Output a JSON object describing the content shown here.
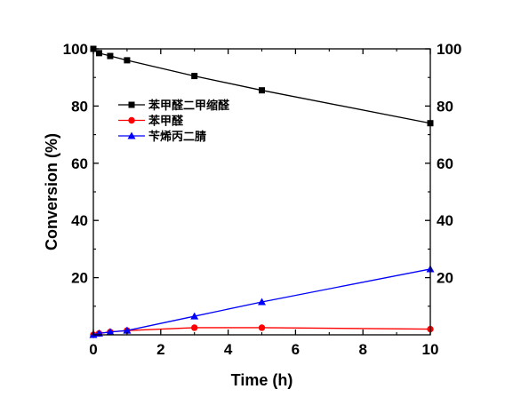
{
  "chart_data": {
    "type": "line",
    "xlabel": "Time (h)",
    "ylabel": "Conversion (%)",
    "xlim": [
      0,
      10
    ],
    "ylim": [
      0,
      100
    ],
    "xticks": [
      "0",
      "2",
      "4",
      "6",
      "8",
      "10"
    ],
    "yticks": [
      "20",
      "40",
      "60",
      "80",
      "100"
    ],
    "right_axis_ticks": [
      "20",
      "40",
      "60",
      "80",
      "100"
    ],
    "grid": false,
    "legend_position": "upper-left",
    "series": [
      {
        "name": "苯甲醛二甲缩醛",
        "color": "#000000",
        "marker": "square",
        "x": [
          0,
          0.17,
          0.5,
          1,
          3,
          5,
          10
        ],
        "y": [
          100,
          98.5,
          97.5,
          96,
          90.5,
          85.5,
          74
        ]
      },
      {
        "name": "苯甲醛",
        "color": "#ff0000",
        "marker": "circle",
        "x": [
          0,
          0.17,
          0.5,
          1,
          3,
          5,
          10
        ],
        "y": [
          0,
          0.5,
          1,
          1.5,
          2.5,
          2.5,
          2
        ]
      },
      {
        "name": "苄烯丙二腈",
        "color": "#0000ff",
        "marker": "triangle",
        "x": [
          0,
          0.17,
          0.5,
          1,
          3,
          5,
          10
        ],
        "y": [
          0,
          0.5,
          1,
          1.5,
          6.5,
          11.5,
          23
        ]
      }
    ]
  }
}
